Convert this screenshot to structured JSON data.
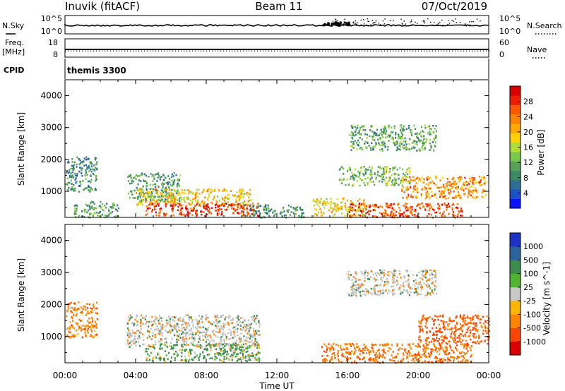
{
  "header": {
    "station": "Inuvik (fitACF)",
    "beam": "Beam 11",
    "date": "07/Oct/2019"
  },
  "nsky_panel": {
    "left_label": "N.Sky",
    "left_ticks": [
      "10^5",
      "10^0"
    ],
    "right_label": "N.Search",
    "right_ticks": [
      "10^5",
      "10^0"
    ]
  },
  "freq_panel": {
    "left_label_1": "Freq.",
    "left_label_2": "[MHz]",
    "left_ticks": [
      "18",
      "8"
    ],
    "right_label": "Nave",
    "right_ticks": [
      "60",
      "0"
    ]
  },
  "cpid_panel": {
    "label": "CPID",
    "program": "themis 3300"
  },
  "chart_data": [
    {
      "type": "heatmap",
      "quantity": "Power",
      "ylabel": "Slant Range [km]",
      "xlabel": "Time UT",
      "ylim": [
        180,
        4500
      ],
      "yticks": [
        "1000",
        "2000",
        "3000",
        "4000"
      ],
      "xticks": [
        "00:00",
        "04:00",
        "08:00",
        "12:00",
        "16:00",
        "20:00",
        "00:00"
      ],
      "xlim_hours": [
        0,
        24
      ],
      "colorbar": {
        "label": "Power [dB]",
        "ticks": [
          "4",
          "8",
          "12",
          "16",
          "20",
          "24",
          "28"
        ],
        "colors": [
          "#0a14ff",
          "#1e50c8",
          "#2e6e96",
          "#3c8a64",
          "#5aa05a",
          "#78c84b",
          "#b4dc37",
          "#ffd200",
          "#ffa800",
          "#ff8200",
          "#ff5a00",
          "#f01e00",
          "#dc0000"
        ]
      },
      "echo_regions": [
        {
          "t": [
            0.0,
            1.8
          ],
          "r": [
            1000,
            2100
          ],
          "value": 8
        },
        {
          "t": [
            0.5,
            3.0
          ],
          "r": [
            200,
            700
          ],
          "value": 10
        },
        {
          "t": [
            3.5,
            6.5
          ],
          "r": [
            700,
            1600
          ],
          "value": 9
        },
        {
          "t": [
            4.0,
            10.5
          ],
          "r": [
            600,
            1100
          ],
          "value": 18
        },
        {
          "t": [
            4.5,
            11.0
          ],
          "r": [
            250,
            650
          ],
          "value": 27
        },
        {
          "t": [
            10.0,
            13.5
          ],
          "r": [
            200,
            600
          ],
          "value": 8
        },
        {
          "t": [
            14.0,
            17.0
          ],
          "r": [
            250,
            800
          ],
          "value": 18
        },
        {
          "t": [
            16.0,
            22.5
          ],
          "r": [
            200,
            650
          ],
          "value": 26
        },
        {
          "t": [
            19.0,
            23.8
          ],
          "r": [
            800,
            1500
          ],
          "value": 22
        },
        {
          "t": [
            15.5,
            19.5
          ],
          "r": [
            1200,
            1800
          ],
          "value": 12
        },
        {
          "t": [
            16.0,
            21.0
          ],
          "r": [
            2300,
            3100
          ],
          "value": 10
        }
      ]
    },
    {
      "type": "heatmap",
      "quantity": "Velocity",
      "ylabel": "Slant Range [km]",
      "xlabel": "Time UT",
      "ylim": [
        180,
        4500
      ],
      "yticks": [
        "1000",
        "2000",
        "3000",
        "4000"
      ],
      "xticks": [
        "00:00",
        "04:00",
        "08:00",
        "12:00",
        "16:00",
        "20:00",
        "00:00"
      ],
      "xlim_hours": [
        0,
        24
      ],
      "colorbar": {
        "label": "Velocity [m s^-1]",
        "ticks": [
          "1000",
          "500",
          "100",
          "25",
          "-25",
          "-100",
          "-500",
          "-1000"
        ],
        "colors": [
          "#1e32c8",
          "#2d64a0",
          "#3c8c50",
          "#50b432",
          "#c8c8c8",
          "#ffb400",
          "#ff8200",
          "#ff4600",
          "#dc0000"
        ]
      },
      "echo_regions": [
        {
          "t": [
            0.0,
            1.8
          ],
          "r": [
            1000,
            2100
          ],
          "value": -300
        },
        {
          "t": [
            3.5,
            11.0
          ],
          "r": [
            700,
            1700
          ],
          "value": 0
        },
        {
          "t": [
            4.5,
            11.0
          ],
          "r": [
            250,
            800
          ],
          "value": 200
        },
        {
          "t": [
            14.5,
            23.0
          ],
          "r": [
            200,
            800
          ],
          "value": -400
        },
        {
          "t": [
            20.0,
            24.0
          ],
          "r": [
            800,
            1700
          ],
          "value": -600
        },
        {
          "t": [
            16.0,
            21.0
          ],
          "r": [
            2300,
            3100
          ],
          "value": 0
        }
      ]
    }
  ],
  "colors": {
    "ground_scatter": "#c0c0c0"
  }
}
